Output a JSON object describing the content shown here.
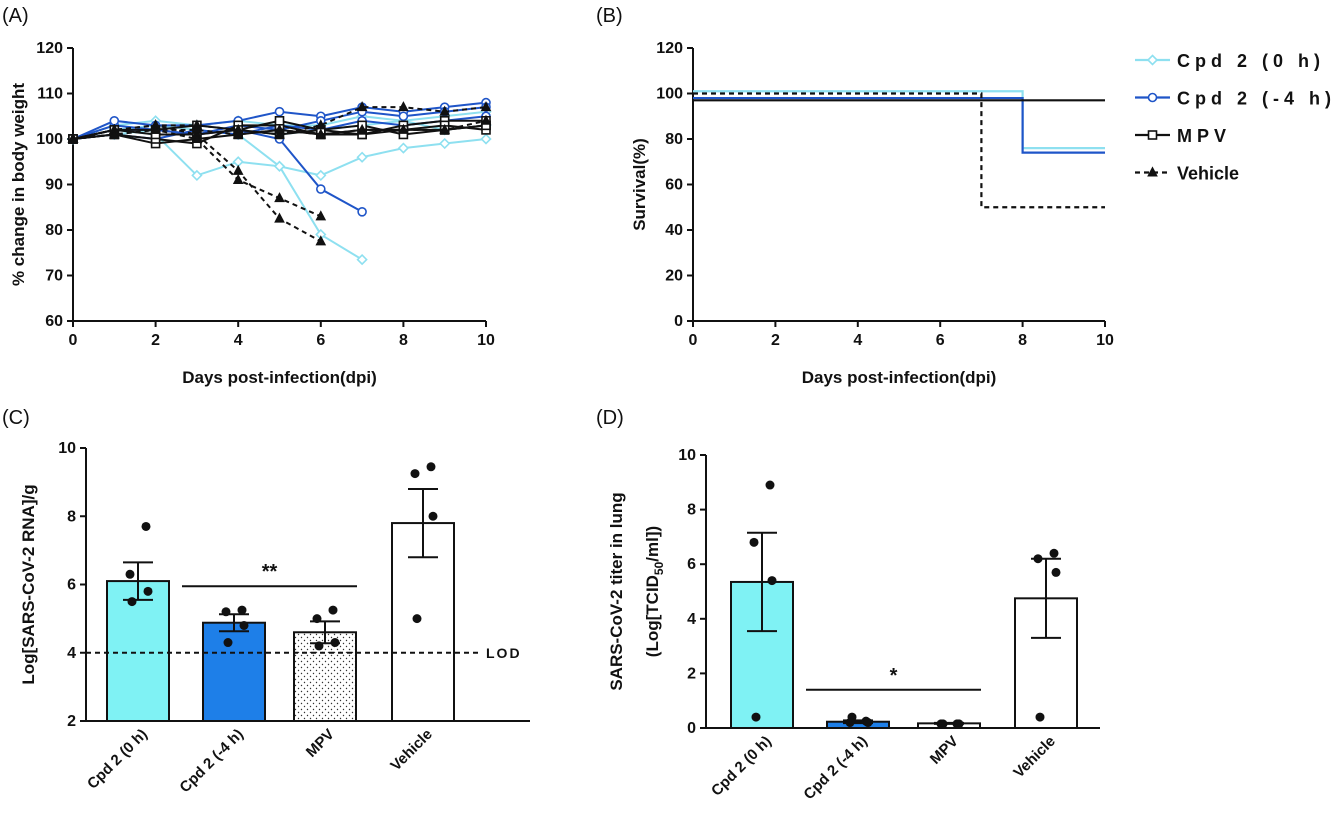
{
  "colors": {
    "light": "#8ee0f0",
    "blue": "#1f55c8",
    "black": "#111111",
    "barLight": "#7ff2f4",
    "barBlue": "#1e7fe8"
  },
  "panels": {
    "a": "(A)",
    "b": "(B)",
    "c": "(C)",
    "d": "(D)"
  },
  "chart_data": [
    {
      "panel": "A",
      "type": "line",
      "xlabel": "Days post-infection(dpi)",
      "ylabel": "% change in body weight",
      "xlim": [
        0,
        10
      ],
      "ylim": [
        60,
        120
      ],
      "xticks": [
        "0",
        "2",
        "4",
        "6",
        "8",
        "10"
      ],
      "yticks": [
        "60",
        "70",
        "80",
        "90",
        "100",
        "110",
        "120"
      ],
      "series": [
        {
          "group": "Cpd 2 (0 h)",
          "color": "light",
          "marker": "diamond",
          "dashed": false,
          "x": [
            0,
            1,
            2,
            3,
            4,
            5,
            6,
            7
          ],
          "y": [
            100,
            102,
            101,
            92,
            95,
            94,
            79,
            73.5
          ]
        },
        {
          "group": "Cpd 2 (0 h)",
          "color": "light",
          "marker": "diamond",
          "dashed": false,
          "x": [
            0,
            1,
            2,
            3,
            4,
            5,
            6,
            7,
            8,
            9,
            10
          ],
          "y": [
            100,
            102,
            103,
            102,
            101,
            94,
            92,
            96,
            98,
            99,
            100
          ]
        },
        {
          "group": "Cpd 2 (0 h)",
          "color": "light",
          "marker": "diamond",
          "dashed": false,
          "x": [
            0,
            1,
            2,
            3,
            4,
            5,
            6,
            7,
            8,
            9,
            10
          ],
          "y": [
            100,
            101,
            102,
            103,
            102,
            101,
            102,
            103,
            104,
            102,
            103
          ]
        },
        {
          "group": "Cpd 2 (0 h)",
          "color": "light",
          "marker": "diamond",
          "dashed": false,
          "x": [
            0,
            1,
            2,
            3,
            4,
            5,
            6,
            7,
            8,
            9,
            10
          ],
          "y": [
            100,
            103,
            104,
            103,
            104,
            103,
            103,
            105,
            104,
            105,
            106
          ]
        },
        {
          "group": "Cpd 2 (-4 h)",
          "color": "blue",
          "marker": "circle",
          "dashed": false,
          "x": [
            0,
            1,
            2,
            3,
            4,
            5,
            6,
            7
          ],
          "y": [
            100,
            103,
            102,
            101,
            102,
            100,
            89,
            84
          ]
        },
        {
          "group": "Cpd 2 (-4 h)",
          "color": "blue",
          "marker": "circle",
          "dashed": false,
          "x": [
            0,
            1,
            2,
            3,
            4,
            5,
            6,
            7,
            8,
            9,
            10
          ],
          "y": [
            100,
            104,
            103,
            103,
            104,
            106,
            105,
            107,
            106,
            107,
            108
          ]
        },
        {
          "group": "Cpd 2 (-4 h)",
          "color": "blue",
          "marker": "circle",
          "dashed": false,
          "x": [
            0,
            1,
            2,
            3,
            4,
            5,
            6,
            7,
            8,
            9,
            10
          ],
          "y": [
            100,
            102,
            102,
            101,
            103,
            102,
            104,
            106,
            105,
            106,
            107
          ]
        },
        {
          "group": "Cpd 2 (-4 h)",
          "color": "blue",
          "marker": "circle",
          "dashed": false,
          "x": [
            0,
            1,
            2,
            3,
            4,
            5,
            6,
            7,
            8,
            9,
            10
          ],
          "y": [
            100,
            101,
            100,
            102,
            101,
            103,
            102,
            104,
            103,
            104,
            105
          ]
        },
        {
          "group": "MPV",
          "color": "black",
          "marker": "square",
          "dashed": false,
          "x": [
            0,
            1,
            2,
            3,
            4,
            5,
            6,
            7,
            8,
            9,
            10
          ],
          "y": [
            100,
            101,
            99,
            100,
            101,
            102,
            101,
            101,
            102,
            102,
            103
          ]
        },
        {
          "group": "MPV",
          "color": "black",
          "marker": "square",
          "dashed": false,
          "x": [
            0,
            1,
            2,
            3,
            4,
            5,
            6,
            7,
            8,
            9,
            10
          ],
          "y": [
            100,
            102,
            102,
            103,
            102,
            101,
            102,
            101,
            103,
            104,
            104
          ]
        },
        {
          "group": "MPV",
          "color": "black",
          "marker": "square",
          "dashed": false,
          "x": [
            0,
            1,
            2,
            3,
            4,
            5,
            6,
            7,
            8,
            9,
            10
          ],
          "y": [
            100,
            101,
            100,
            99,
            103,
            103,
            101,
            102,
            102,
            103,
            102
          ]
        },
        {
          "group": "MPV",
          "color": "black",
          "marker": "square",
          "dashed": false,
          "x": [
            0,
            1,
            2,
            3,
            4,
            5,
            6,
            7,
            8,
            9,
            10
          ],
          "y": [
            100,
            102,
            101,
            101,
            102,
            104,
            102,
            103,
            101,
            102,
            103
          ]
        },
        {
          "group": "Vehicle",
          "color": "black",
          "marker": "triangle",
          "dashed": true,
          "x": [
            0,
            1,
            2,
            3,
            4,
            5,
            6
          ],
          "y": [
            100,
            102,
            103,
            101,
            93,
            82.5,
            77.5
          ]
        },
        {
          "group": "Vehicle",
          "color": "black",
          "marker": "triangle",
          "dashed": true,
          "x": [
            0,
            1,
            2,
            3,
            4,
            5,
            6
          ],
          "y": [
            100,
            101,
            102,
            100,
            91,
            87,
            83
          ]
        },
        {
          "group": "Vehicle",
          "color": "black",
          "marker": "triangle",
          "dashed": true,
          "x": [
            0,
            1,
            2,
            3,
            4,
            5,
            6,
            7,
            8,
            9,
            10
          ],
          "y": [
            100,
            102,
            103,
            103,
            102,
            101,
            103,
            107,
            107,
            106,
            107
          ]
        },
        {
          "group": "Vehicle",
          "color": "black",
          "marker": "triangle",
          "dashed": true,
          "x": [
            0,
            1,
            2,
            3,
            4,
            5,
            6,
            7,
            8,
            9,
            10
          ],
          "y": [
            100,
            101,
            102,
            102,
            101,
            102,
            101,
            102,
            102,
            102,
            104
          ]
        }
      ]
    },
    {
      "panel": "B",
      "type": "line",
      "step": true,
      "xlabel": "Days post-infection(dpi)",
      "ylabel": "Survival(%)",
      "xlim": [
        0,
        10
      ],
      "ylim": [
        0,
        120
      ],
      "xticks": [
        "0",
        "2",
        "4",
        "6",
        "8",
        "10"
      ],
      "yticks": [
        "0",
        "20",
        "40",
        "60",
        "80",
        "100",
        "120"
      ],
      "legend_position": "right",
      "series": [
        {
          "name": "Cpd 2 (0 h)",
          "color": "light",
          "marker": "diamond",
          "dashed": false,
          "x": [
            0,
            8,
            10
          ],
          "y": [
            101,
            76,
            76
          ]
        },
        {
          "name": "Cpd 2 (-4 h)",
          "color": "blue",
          "marker": "circle",
          "dashed": false,
          "x": [
            0,
            8,
            10
          ],
          "y": [
            98,
            74,
            74
          ]
        },
        {
          "name": "MPV",
          "color": "black",
          "marker": "square",
          "dashed": false,
          "x": [
            0,
            10
          ],
          "y": [
            97,
            97
          ]
        },
        {
          "name": "Vehicle",
          "color": "black",
          "marker": "triangle",
          "dashed": true,
          "x": [
            0,
            7,
            10
          ],
          "y": [
            100,
            50,
            50
          ]
        }
      ]
    },
    {
      "panel": "C",
      "type": "bar",
      "ylabel": "Log[SARS-CoV-2 RNA]/g",
      "ylim": [
        2,
        10
      ],
      "yticks": [
        "2",
        "4",
        "6",
        "8",
        "10"
      ],
      "categories": [
        "Cpd 2 (0 h)",
        "Cpd 2 (-4 h)",
        "MPV",
        "Vehicle"
      ],
      "values": [
        6.1,
        4.88,
        4.6,
        7.8
      ],
      "sem": [
        0.55,
        0.25,
        0.32,
        1.0
      ],
      "points": [
        [
          7.7,
          6.3,
          5.8,
          5.5
        ],
        [
          5.25,
          5.2,
          4.8,
          4.3
        ],
        [
          5.25,
          5.0,
          4.3,
          4.2
        ],
        [
          9.45,
          9.25,
          8.0,
          5.0
        ]
      ],
      "fills": [
        "barLight",
        "barBlue",
        "dotted",
        "white"
      ],
      "lod": 4,
      "lod_label": "LOD",
      "significance": {
        "label": "**",
        "from": 1,
        "to": 2,
        "y": 5.95
      }
    },
    {
      "panel": "D",
      "type": "bar",
      "ylabel": "SARS-CoV-2 titer in lung",
      "ylabel2": "(Log[TCID",
      "ylabel_sub": "50",
      "ylabel_end": "/ml])",
      "ylim": [
        0,
        10
      ],
      "yticks": [
        "0",
        "2",
        "4",
        "6",
        "8",
        "10"
      ],
      "categories": [
        "Cpd 2 (0 h)",
        "Cpd 2 (-4 h)",
        "MPV",
        "Vehicle"
      ],
      "values": [
        5.35,
        0.23,
        0.17,
        4.75
      ],
      "sem": [
        1.8,
        0.05,
        0.02,
        1.45
      ],
      "points": [
        [
          8.9,
          6.8,
          5.4,
          0.4
        ],
        [
          0.25,
          0.2,
          0.2,
          0.4
        ],
        [
          0.15,
          0.15,
          0.15,
          0.15
        ],
        [
          6.4,
          6.2,
          5.7,
          0.4
        ]
      ],
      "fills": [
        "barLight",
        "barBlue",
        "white",
        "white"
      ],
      "significance": {
        "label": "*",
        "from": 1,
        "to": 2,
        "y": 1.4
      }
    }
  ]
}
